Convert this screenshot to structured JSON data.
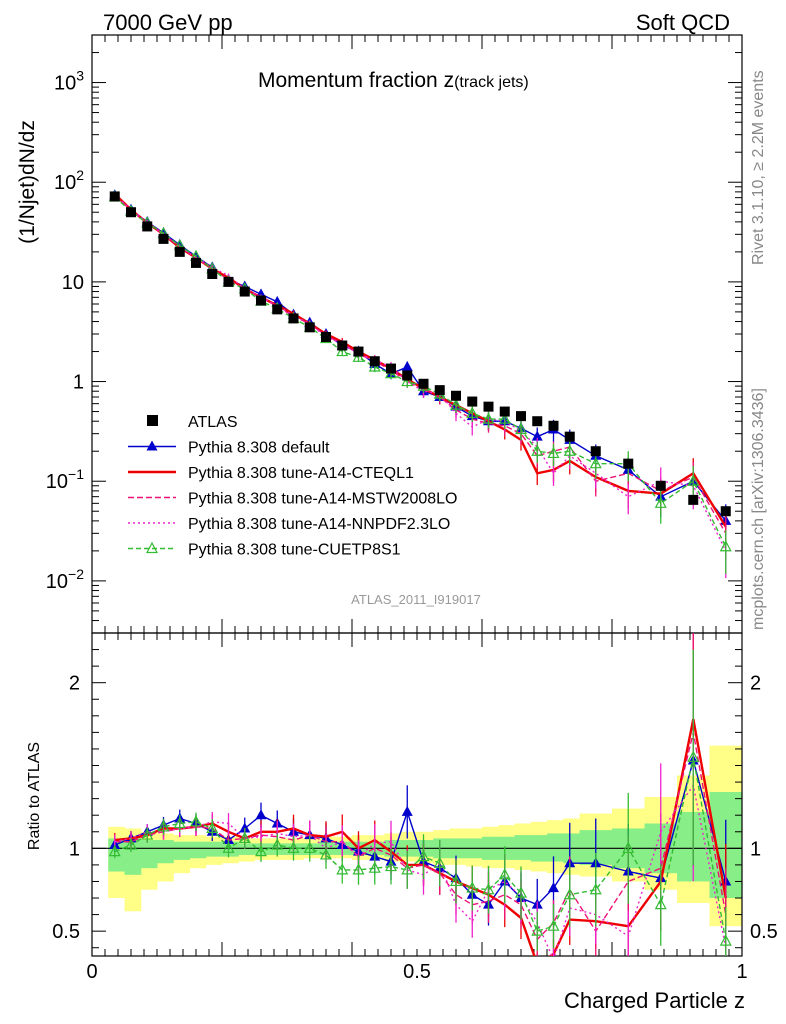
{
  "header": {
    "left": "7000 GeV pp",
    "right": "Soft QCD"
  },
  "title_main": "Momentum fraction z",
  "title_sub": "(track jets)",
  "analysis_id": "ATLAS_2011_I919017",
  "side_text_top": "Rivet 3.1.10, ≥ 2.2M events",
  "side_text_bottom": "mcplots.cern.ch [arXiv:1306.3436]",
  "colors": {
    "atlas": "#000000",
    "default": "#0000cc",
    "cteql1": "#ee0000",
    "mstw": "#ee1177",
    "nnpdf": "#ee22cc",
    "cuetp8s1": "#33bb33",
    "band_yellow": "#ffff88",
    "band_green": "#88ee88"
  },
  "chart_data": [
    {
      "type": "line",
      "title": "Momentum fraction z(track jets)",
      "xlabel": "Charged Particle z",
      "ylabel": "(1/Njet)dN/dz",
      "yscale": "log",
      "xlim": [
        0,
        1
      ],
      "ylim": [
        0.003,
        3000
      ],
      "y_ticks": [
        {
          "v": 0.01,
          "label": "10",
          "exp": "−2"
        },
        {
          "v": 0.1,
          "label": "10",
          "exp": "−1"
        },
        {
          "v": 1,
          "label": "1",
          "exp": ""
        },
        {
          "v": 10,
          "label": "10",
          "exp": ""
        },
        {
          "v": 100,
          "label": "10",
          "exp": "2"
        },
        {
          "v": 1000,
          "label": "10",
          "exp": "3"
        }
      ],
      "legend_position": "bottom-left",
      "x": [
        0.035,
        0.06,
        0.085,
        0.11,
        0.135,
        0.16,
        0.185,
        0.21,
        0.235,
        0.26,
        0.285,
        0.31,
        0.335,
        0.36,
        0.385,
        0.41,
        0.435,
        0.46,
        0.485,
        0.51,
        0.535,
        0.56,
        0.585,
        0.61,
        0.635,
        0.66,
        0.685,
        0.71,
        0.735,
        0.775,
        0.825,
        0.875,
        0.925,
        0.975
      ],
      "series": [
        {
          "name": "ATLAS",
          "color_key": "atlas",
          "marker": "square",
          "values": [
            72,
            50,
            36,
            27,
            20,
            15.5,
            12,
            10,
            8,
            6.5,
            5.3,
            4.3,
            3.5,
            2.8,
            2.3,
            2.0,
            1.6,
            1.35,
            1.15,
            0.95,
            0.82,
            0.72,
            0.63,
            0.56,
            0.5,
            0.45,
            0.4,
            0.36,
            0.28,
            0.2,
            0.15,
            0.09,
            0.065,
            0.05
          ]
        },
        {
          "name": "Pythia 8.308 default",
          "color_key": "default",
          "marker": "triangle",
          "values": [
            74,
            53,
            40,
            31,
            23.5,
            18,
            14,
            10.5,
            9,
            7.5,
            6.3,
            4.7,
            3.9,
            3.0,
            2.3,
            2.0,
            1.5,
            1.2,
            1.4,
            0.8,
            0.7,
            0.56,
            0.45,
            0.4,
            0.4,
            0.34,
            0.28,
            0.33,
            0.26,
            0.18,
            0.13,
            0.07,
            0.1,
            0.04
          ]
        },
        {
          "name": "Pythia 8.308 tune-A14-CTEQL1",
          "color_key": "cteql1",
          "marker": "none",
          "values": [
            76,
            53,
            39,
            30,
            22,
            17.5,
            13.5,
            11,
            8.5,
            7,
            5.8,
            4.8,
            3.8,
            3.0,
            2.5,
            2.0,
            1.65,
            1.35,
            1.05,
            0.85,
            0.7,
            0.58,
            0.48,
            0.4,
            0.33,
            0.26,
            0.12,
            0.13,
            0.16,
            0.11,
            0.08,
            0.075,
            0.12,
            0.035
          ]
        },
        {
          "name": "Pythia 8.308 tune-A14-MSTW2008LO",
          "color_key": "mstw",
          "marker": "none",
          "values": [
            75,
            52,
            39,
            30,
            22.5,
            17.5,
            13.5,
            10.5,
            8.5,
            7,
            5.7,
            4.5,
            3.8,
            2.9,
            2.4,
            1.9,
            1.6,
            1.3,
            1.0,
            0.85,
            0.7,
            0.52,
            0.42,
            0.38,
            0.36,
            0.3,
            0.18,
            0.2,
            0.22,
            0.1,
            0.12,
            0.08,
            0.11,
            0.03
          ]
        },
        {
          "name": "Pythia 8.308 tune-A14-NNPDF2.3LO",
          "color_key": "nnpdf",
          "marker": "none",
          "values": [
            75,
            53,
            40,
            30,
            22.5,
            17.5,
            14,
            11.5,
            8.5,
            7,
            5.8,
            4.6,
            3.8,
            2.8,
            2.4,
            1.9,
            1.65,
            1.4,
            1.0,
            0.8,
            0.75,
            0.48,
            0.35,
            0.42,
            0.4,
            0.32,
            0.22,
            0.12,
            0.18,
            0.12,
            0.07,
            0.1,
            0.09,
            0.02
          ]
        },
        {
          "name": "Pythia 8.308 tune-CUETP8S1",
          "color_key": "cuetp8s1",
          "marker": "open-triangle",
          "values": [
            71,
            51,
            39,
            30.5,
            23,
            18,
            13.5,
            10,
            8.5,
            6.4,
            5.4,
            4.3,
            3.5,
            2.7,
            2.0,
            1.75,
            1.4,
            1.2,
            1.0,
            0.9,
            0.75,
            0.58,
            0.48,
            0.42,
            0.42,
            0.33,
            0.2,
            0.19,
            0.2,
            0.15,
            0.15,
            0.06,
            0.1,
            0.022
          ]
        }
      ]
    },
    {
      "type": "line",
      "title": "",
      "xlabel": "Charged Particle z",
      "ylabel": "Ratio to ATLAS",
      "xlim": [
        0,
        1
      ],
      "ylim": [
        0.35,
        2.3
      ],
      "y_ticks": [
        0.5,
        1,
        2
      ],
      "x_ticks": [
        {
          "v": 0,
          "label": "0"
        },
        {
          "v": 0.5,
          "label": "0.5"
        },
        {
          "v": 1,
          "label": "1"
        }
      ],
      "x": [
        0.035,
        0.06,
        0.085,
        0.11,
        0.135,
        0.16,
        0.185,
        0.21,
        0.235,
        0.26,
        0.285,
        0.31,
        0.335,
        0.36,
        0.385,
        0.41,
        0.435,
        0.46,
        0.485,
        0.51,
        0.535,
        0.56,
        0.585,
        0.61,
        0.635,
        0.66,
        0.685,
        0.71,
        0.735,
        0.775,
        0.825,
        0.875,
        0.925,
        0.975
      ],
      "band_edges": [
        0.025,
        0.05,
        0.075,
        0.1,
        0.125,
        0.15,
        0.175,
        0.2,
        0.225,
        0.25,
        0.275,
        0.3,
        0.325,
        0.35,
        0.375,
        0.4,
        0.425,
        0.45,
        0.475,
        0.5,
        0.525,
        0.55,
        0.575,
        0.6,
        0.625,
        0.65,
        0.675,
        0.7,
        0.725,
        0.75,
        0.8,
        0.85,
        0.9,
        0.95,
        1.0
      ],
      "band_yellow": [
        [
          0.7,
          1.13
        ],
        [
          0.62,
          1.12
        ],
        [
          0.75,
          1.1
        ],
        [
          0.8,
          1.09
        ],
        [
          0.85,
          1.08
        ],
        [
          0.88,
          1.08
        ],
        [
          0.9,
          1.07
        ],
        [
          0.91,
          1.07
        ],
        [
          0.92,
          1.06
        ],
        [
          0.93,
          1.06
        ],
        [
          0.93,
          1.06
        ],
        [
          0.93,
          1.06
        ],
        [
          0.94,
          1.06
        ],
        [
          0.94,
          1.07
        ],
        [
          0.94,
          1.07
        ],
        [
          0.93,
          1.08
        ],
        [
          0.93,
          1.08
        ],
        [
          0.92,
          1.09
        ],
        [
          0.92,
          1.1
        ],
        [
          0.91,
          1.1
        ],
        [
          0.9,
          1.11
        ],
        [
          0.9,
          1.12
        ],
        [
          0.89,
          1.12
        ],
        [
          0.88,
          1.13
        ],
        [
          0.88,
          1.14
        ],
        [
          0.87,
          1.15
        ],
        [
          0.86,
          1.16
        ],
        [
          0.85,
          1.17
        ],
        [
          0.84,
          1.18
        ],
        [
          0.83,
          1.21
        ],
        [
          0.8,
          1.24
        ],
        [
          0.75,
          1.31
        ],
        [
          0.67,
          1.44
        ],
        [
          0.53,
          1.62
        ]
      ],
      "band_green": [
        [
          0.86,
          1.06
        ],
        [
          0.84,
          1.06
        ],
        [
          0.88,
          1.05
        ],
        [
          0.91,
          1.05
        ],
        [
          0.93,
          1.04
        ],
        [
          0.94,
          1.04
        ],
        [
          0.95,
          1.04
        ],
        [
          0.95,
          1.04
        ],
        [
          0.96,
          1.03
        ],
        [
          0.96,
          1.03
        ],
        [
          0.96,
          1.03
        ],
        [
          0.96,
          1.03
        ],
        [
          0.96,
          1.03
        ],
        [
          0.96,
          1.04
        ],
        [
          0.96,
          1.04
        ],
        [
          0.96,
          1.04
        ],
        [
          0.96,
          1.04
        ],
        [
          0.95,
          1.05
        ],
        [
          0.95,
          1.05
        ],
        [
          0.95,
          1.05
        ],
        [
          0.94,
          1.06
        ],
        [
          0.94,
          1.06
        ],
        [
          0.94,
          1.06
        ],
        [
          0.93,
          1.07
        ],
        [
          0.93,
          1.07
        ],
        [
          0.93,
          1.08
        ],
        [
          0.92,
          1.08
        ],
        [
          0.92,
          1.09
        ],
        [
          0.91,
          1.09
        ],
        [
          0.9,
          1.11
        ],
        [
          0.88,
          1.12
        ],
        [
          0.85,
          1.15
        ],
        [
          0.8,
          1.22
        ],
        [
          0.7,
          1.34
        ]
      ],
      "series": [
        {
          "name": "Pythia 8.308 default",
          "color_key": "default",
          "marker": "triangle",
          "values": [
            1.02,
            1.06,
            1.1,
            1.14,
            1.18,
            1.15,
            1.1,
            1.05,
            1.12,
            1.2,
            1.15,
            1.1,
            1.08,
            1.06,
            1.02,
            0.98,
            0.95,
            0.92,
            1.22,
            0.92,
            0.88,
            0.82,
            0.72,
            0.66,
            0.8,
            0.7,
            0.66,
            0.76,
            0.91,
            0.91,
            0.86,
            0.82,
            1.53,
            0.8
          ]
        },
        {
          "name": "Pythia 8.308 tune-A14-CTEQL1",
          "color_key": "cteql1",
          "marker": "none",
          "values": [
            1.05,
            1.06,
            1.08,
            1.12,
            1.12,
            1.13,
            1.15,
            1.1,
            1.06,
            1.1,
            1.1,
            1.12,
            1.08,
            1.07,
            1.1,
            1.0,
            1.05,
            0.98,
            0.9,
            0.9,
            0.85,
            0.8,
            0.76,
            0.72,
            0.66,
            0.58,
            0.3,
            0.36,
            0.57,
            0.56,
            0.53,
            0.8,
            1.78,
            0.7
          ]
        },
        {
          "name": "Pythia 8.308 tune-A14-MSTW2008LO",
          "color_key": "mstw",
          "marker": "none",
          "values": [
            1.04,
            1.04,
            1.08,
            1.1,
            1.12,
            1.13,
            1.12,
            1.05,
            1.06,
            1.08,
            1.07,
            1.05,
            1.08,
            1.04,
            1.04,
            0.95,
            1.0,
            0.96,
            0.88,
            0.9,
            0.85,
            0.72,
            0.66,
            0.68,
            0.72,
            0.66,
            0.45,
            0.55,
            0.75,
            0.5,
            0.8,
            0.88,
            1.7,
            0.6
          ]
        },
        {
          "name": "Pythia 8.308 tune-A14-NNPDF2.3LO",
          "color_key": "nnpdf",
          "marker": "none",
          "values": [
            1.04,
            1.06,
            1.1,
            1.1,
            1.12,
            1.13,
            1.16,
            1.15,
            1.06,
            1.07,
            1.09,
            1.07,
            1.08,
            1.0,
            1.04,
            0.95,
            1.03,
            1.04,
            0.87,
            0.84,
            0.91,
            0.66,
            0.56,
            0.75,
            0.8,
            0.71,
            0.55,
            0.33,
            0.64,
            0.6,
            0.47,
            1.1,
            1.38,
            0.4
          ]
        },
        {
          "name": "Pythia 8.308 tune-CUETP8S1",
          "color_key": "cuetp8s1",
          "marker": "open-triangle",
          "values": [
            0.98,
            1.02,
            1.08,
            1.13,
            1.15,
            1.16,
            1.12,
            1.0,
            1.06,
            0.98,
            1.02,
            1.0,
            1.0,
            0.96,
            0.87,
            0.87,
            0.88,
            0.89,
            0.87,
            0.95,
            0.91,
            0.8,
            0.76,
            0.75,
            0.84,
            0.73,
            0.5,
            0.53,
            0.72,
            0.75,
            1.0,
            0.66,
            1.55,
            0.44
          ]
        }
      ]
    }
  ]
}
